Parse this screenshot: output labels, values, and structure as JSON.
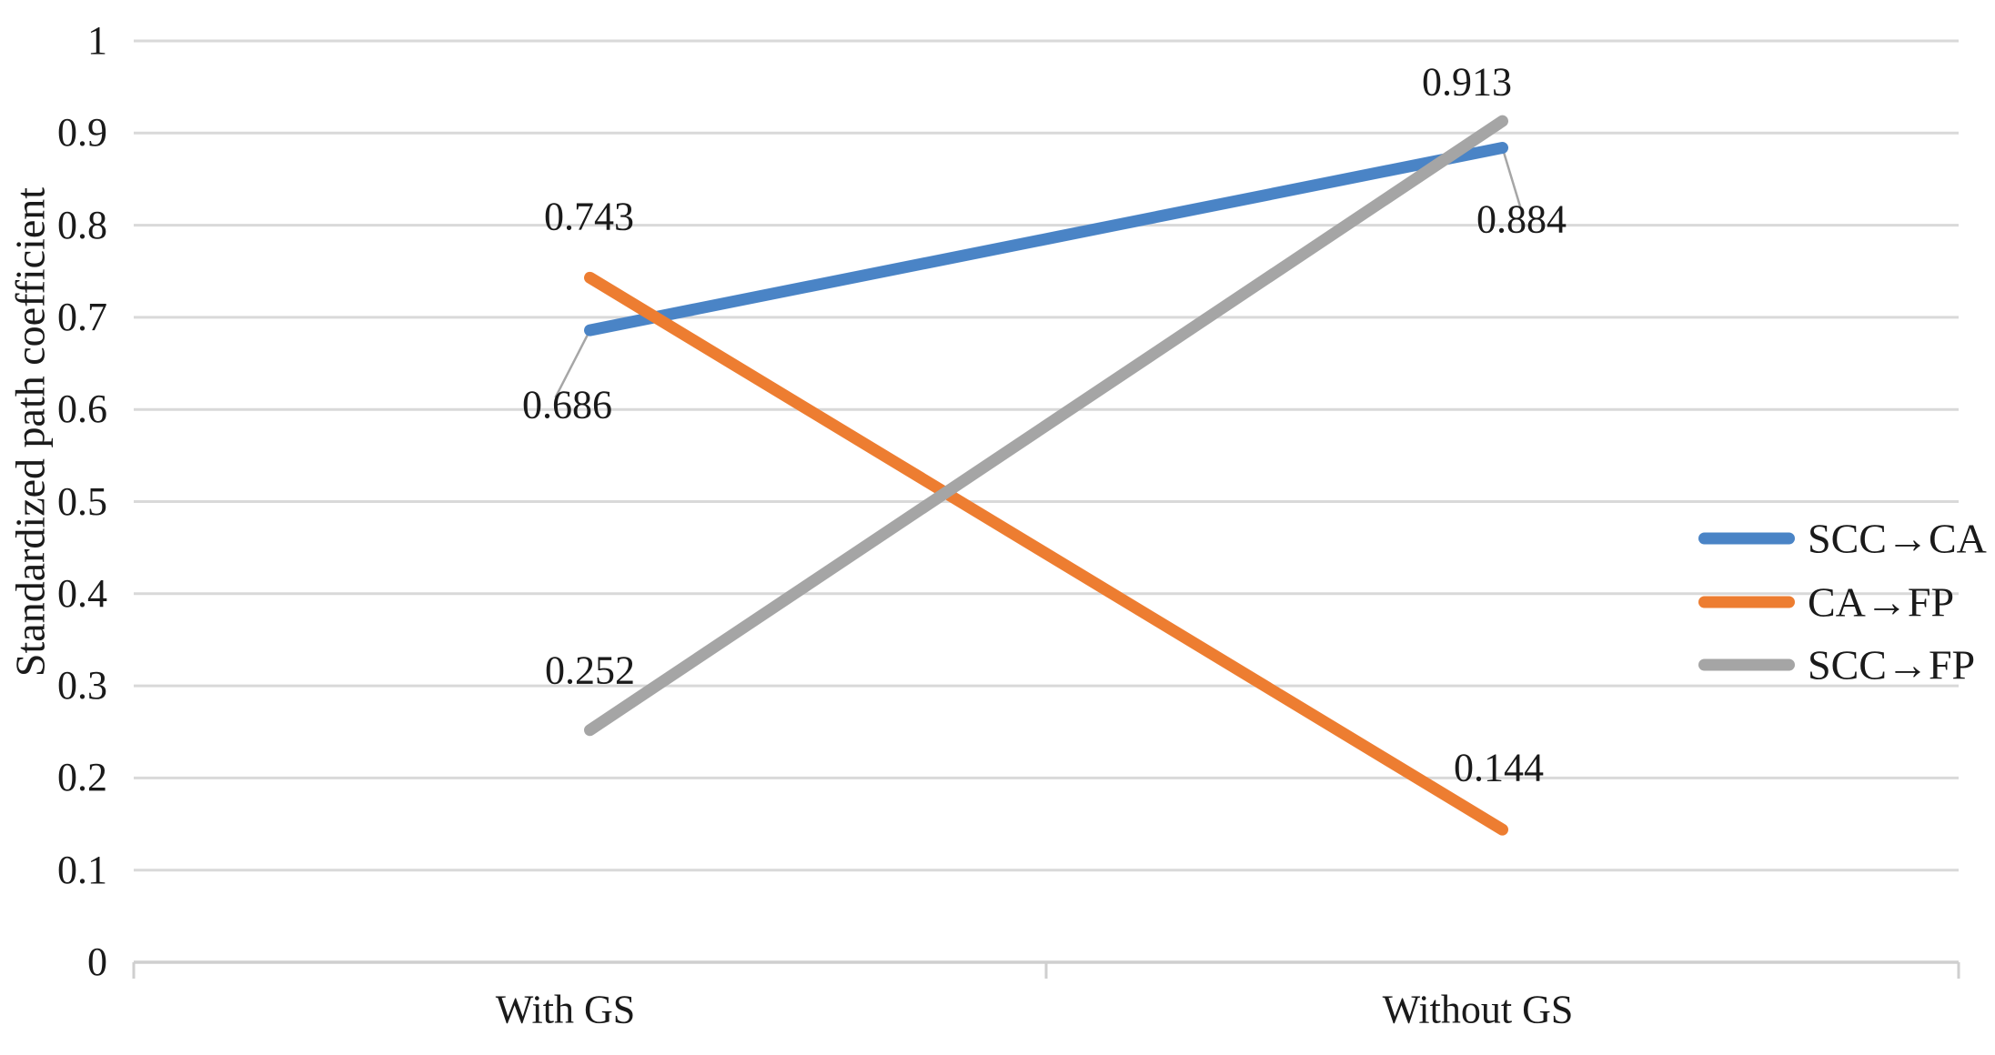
{
  "chart_data": {
    "type": "line",
    "title": "",
    "xlabel": "",
    "ylabel": "Standardized path coefficient",
    "ylim": [
      0,
      1
    ],
    "grid": true,
    "legend_position": "right",
    "categories": [
      "With GS",
      "Without GS"
    ],
    "y_ticks": [
      {
        "v": 0.0,
        "label": "0"
      },
      {
        "v": 0.1,
        "label": "0.1"
      },
      {
        "v": 0.2,
        "label": "0.2"
      },
      {
        "v": 0.3,
        "label": "0.3"
      },
      {
        "v": 0.4,
        "label": "0.4"
      },
      {
        "v": 0.5,
        "label": "0.5"
      },
      {
        "v": 0.6,
        "label": "0.6"
      },
      {
        "v": 0.7,
        "label": "0.7"
      },
      {
        "v": 0.8,
        "label": "0.8"
      },
      {
        "v": 0.9,
        "label": "0.9"
      },
      {
        "v": 1.0,
        "label": "1"
      }
    ],
    "series": [
      {
        "name": "SCC→CA",
        "color": "#4A84C6",
        "values": [
          0.686,
          0.884
        ],
        "point_labels": [
          {
            "text": "0.686",
            "dx": -25,
            "dy": 82,
            "leader": [
              -38,
              74
            ]
          },
          {
            "text": "0.884",
            "dx": 21,
            "dy": 78,
            "leader": [
              20,
              66
            ]
          }
        ]
      },
      {
        "name": "CA→FP",
        "color": "#ED7D31",
        "values": [
          0.743,
          0.144
        ],
        "point_labels": [
          {
            "text": "0.743",
            "dx": -1,
            "dy": -67,
            "leader": null
          },
          {
            "text": "0.144",
            "dx": -4,
            "dy": -68,
            "leader": null
          }
        ]
      },
      {
        "name": "SCC→FP",
        "color": "#A5A5A5",
        "values": [
          0.252,
          0.913
        ],
        "point_labels": [
          {
            "text": "0.252",
            "dx": 0,
            "dy": -66,
            "leader": null
          },
          {
            "text": "0.913",
            "dx": -39,
            "dy": -43,
            "leader": null
          }
        ]
      }
    ],
    "colors": {
      "gridline": "#D9D9D9",
      "axis_line": "#CFCFCF",
      "leader_line": "#A6A6A6",
      "text": "#1a1a1a"
    }
  }
}
